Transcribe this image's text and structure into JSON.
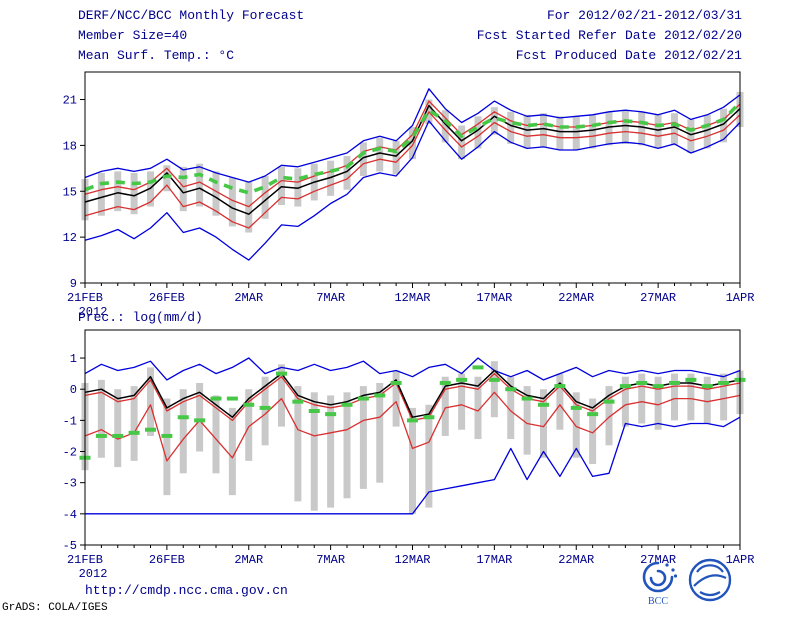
{
  "header": {
    "title": "DERF/NCC/BCC Monthly Forecast",
    "member_size": "Member Size=40",
    "var_label": "Mean Surf. Temp.: °C",
    "for_range": "For 2012/02/21-2012/03/31",
    "refer_date": "Fcst Started Refer Date 2012/02/20",
    "produced_date": "Fcst Produced Date 2012/02/21"
  },
  "footer": {
    "url": "http://cmdp.ncc.cma.gov.cn",
    "credit": "GrADS: COLA/IGES",
    "logo_label": "BCC"
  },
  "colors": {
    "text": "#00008b",
    "blue": "#0000dd",
    "red": "#d93030",
    "black": "#000000",
    "green": "#46c846",
    "bar": "#c9c9c9"
  },
  "chart_data": [
    {
      "type": "line",
      "title": "Mean Surf. Temp.: °C",
      "xlabel": "",
      "ylabel": "°C",
      "grid": false,
      "n_days": 41,
      "x_tick_labels": [
        "21FEB",
        "26FEB",
        "2MAR",
        "7MAR",
        "12MAR",
        "17MAR",
        "22MAR",
        "27MAR",
        "1APR"
      ],
      "x_year_label": "2012",
      "ylim": [
        9,
        22.8
      ],
      "yticks": [
        9,
        12,
        15,
        18,
        21
      ],
      "bars": {
        "color": "#c9c9c9",
        "low": [
          13.1,
          13.4,
          13.7,
          13.5,
          14.0,
          15.0,
          13.7,
          14.0,
          13.4,
          12.7,
          12.3,
          13.2,
          14.1,
          14.0,
          14.4,
          14.7,
          15.1,
          16.0,
          16.3,
          16.1,
          17.1,
          19.4,
          18.2,
          17.1,
          17.8,
          18.7,
          18.1,
          17.8,
          17.9,
          17.7,
          17.7,
          17.8,
          18.0,
          18.1,
          18.0,
          17.8,
          18.0,
          17.5,
          17.8,
          18.2,
          19.2
        ],
        "high": [
          15.8,
          16.2,
          16.3,
          16.2,
          16.3,
          16.7,
          16.6,
          16.8,
          16.3,
          15.9,
          15.6,
          16.0,
          16.6,
          16.5,
          16.8,
          17.0,
          17.3,
          18.2,
          18.5,
          18.3,
          19.2,
          21.0,
          20.3,
          19.3,
          19.9,
          20.5,
          20.2,
          20.0,
          20.1,
          19.9,
          19.9,
          20.0,
          20.2,
          20.3,
          20.2,
          20.0,
          20.1,
          19.7,
          20.0,
          20.4,
          21.5
        ]
      },
      "series": [
        {
          "name": "ensemble max",
          "color": "#0000dd",
          "width": 1.3,
          "values": [
            15.9,
            16.3,
            16.5,
            16.3,
            16.5,
            17.1,
            16.4,
            16.6,
            16.2,
            15.9,
            15.6,
            16.0,
            16.7,
            16.6,
            16.9,
            17.2,
            17.5,
            18.3,
            18.6,
            18.3,
            19.3,
            21.7,
            20.4,
            19.5,
            20.1,
            20.9,
            20.3,
            19.9,
            20.0,
            19.8,
            19.9,
            20.0,
            20.2,
            20.3,
            20.2,
            20.0,
            20.3,
            19.7,
            20.0,
            20.5,
            21.3
          ]
        },
        {
          "name": "upper quartile",
          "color": "#d93030",
          "width": 1.3,
          "values": [
            14.8,
            15.1,
            15.3,
            15.1,
            15.6,
            16.5,
            15.3,
            15.6,
            15.0,
            14.4,
            14.0,
            14.9,
            15.7,
            15.6,
            16.0,
            16.3,
            16.7,
            17.6,
            17.9,
            17.7,
            18.7,
            20.9,
            19.8,
            18.7,
            19.4,
            20.2,
            19.6,
            19.3,
            19.4,
            19.2,
            19.2,
            19.3,
            19.5,
            19.6,
            19.5,
            19.3,
            19.5,
            19.0,
            19.3,
            19.7,
            20.7
          ]
        },
        {
          "name": "lower quartile",
          "color": "#d93030",
          "width": 1.3,
          "values": [
            13.4,
            13.7,
            14.0,
            13.8,
            14.3,
            15.4,
            14.0,
            14.3,
            13.7,
            13.0,
            12.6,
            13.6,
            14.6,
            14.5,
            15.0,
            15.4,
            15.8,
            16.8,
            17.1,
            16.9,
            18.0,
            20.2,
            19.0,
            17.9,
            18.6,
            19.5,
            18.9,
            18.6,
            18.7,
            18.5,
            18.5,
            18.6,
            18.8,
            18.9,
            18.8,
            18.6,
            18.8,
            18.3,
            18.6,
            19.0,
            20.0
          ]
        },
        {
          "name": "ensemble min",
          "color": "#0000dd",
          "width": 1.3,
          "values": [
            11.8,
            12.1,
            12.5,
            11.9,
            12.6,
            13.6,
            12.3,
            12.6,
            12.0,
            11.2,
            10.5,
            11.6,
            12.8,
            12.7,
            13.4,
            14.2,
            14.8,
            15.9,
            16.2,
            16.0,
            17.2,
            19.6,
            18.3,
            17.1,
            17.9,
            18.9,
            18.2,
            17.8,
            17.9,
            17.7,
            17.7,
            17.9,
            18.1,
            18.2,
            18.1,
            17.8,
            18.1,
            17.5,
            17.9,
            18.4,
            19.5
          ]
        },
        {
          "name": "ensemble mean",
          "color": "#000000",
          "width": 1.5,
          "values": [
            14.3,
            14.6,
            14.9,
            14.7,
            15.2,
            16.2,
            14.9,
            15.2,
            14.6,
            13.9,
            13.5,
            14.4,
            15.3,
            15.2,
            15.6,
            15.9,
            16.3,
            17.2,
            17.5,
            17.3,
            18.3,
            20.6,
            19.4,
            18.3,
            19.0,
            19.9,
            19.3,
            19.0,
            19.1,
            18.9,
            18.9,
            19.0,
            19.2,
            19.3,
            19.2,
            19.0,
            19.2,
            18.7,
            19.0,
            19.4,
            20.4
          ]
        },
        {
          "name": "highlighted mean (green dashed)",
          "color": "#46c846",
          "dashed": true,
          "width": 3.6,
          "values": [
            15.1,
            15.5,
            15.6,
            15.5,
            15.6,
            16.0,
            15.9,
            16.1,
            15.6,
            15.2,
            14.9,
            15.3,
            15.9,
            15.8,
            16.1,
            16.3,
            16.6,
            17.5,
            17.8,
            17.6,
            18.5,
            20.3,
            19.6,
            18.6,
            19.2,
            19.8,
            19.5,
            19.3,
            19.4,
            19.2,
            19.2,
            19.3,
            19.5,
            19.6,
            19.5,
            19.3,
            19.4,
            19.0,
            19.3,
            19.7,
            20.8
          ]
        }
      ]
    },
    {
      "type": "line",
      "title": "Prec.: log(mm/d)",
      "xlabel": "",
      "ylabel": "log(mm/d)",
      "grid": false,
      "n_days": 41,
      "x_tick_labels": [
        "21FEB",
        "26FEB",
        "2MAR",
        "7MAR",
        "12MAR",
        "17MAR",
        "22MAR",
        "27MAR",
        "1APR"
      ],
      "x_year_label": "2012",
      "ylim": [
        -5,
        1.9
      ],
      "yticks": [
        1,
        0,
        -1,
        -2,
        -3,
        -4,
        -5
      ],
      "bars": {
        "color": "#c9c9c9",
        "low": [
          -2.6,
          -2.2,
          -2.5,
          -2.3,
          -1.5,
          -3.4,
          -2.7,
          -2.0,
          -2.7,
          -3.4,
          -2.3,
          -1.8,
          -1.2,
          -3.6,
          -3.9,
          -3.8,
          -3.5,
          -3.2,
          -3.0,
          -1.2,
          -4.0,
          -3.8,
          -1.5,
          -1.3,
          -1.6,
          -0.9,
          -1.6,
          -2.1,
          -2.2,
          -1.3,
          -2.2,
          -2.4,
          -1.8,
          -1.2,
          -1.1,
          -1.3,
          -1.0,
          -1.0,
          -1.1,
          -1.0,
          -0.8
        ],
        "high": [
          0.2,
          0.3,
          0.0,
          0.1,
          0.7,
          -0.3,
          0.0,
          0.2,
          -0.2,
          -0.6,
          0.0,
          0.4,
          0.8,
          0.1,
          -0.1,
          -0.2,
          -0.1,
          0.1,
          0.2,
          0.6,
          -0.6,
          -0.5,
          0.4,
          0.5,
          0.4,
          0.9,
          0.4,
          0.1,
          0.0,
          0.5,
          -0.1,
          -0.3,
          0.1,
          0.4,
          0.5,
          0.4,
          0.5,
          0.5,
          0.4,
          0.5,
          0.6
        ]
      },
      "series": [
        {
          "name": "ensemble max",
          "color": "#0000dd",
          "width": 1.3,
          "values": [
            0.5,
            0.8,
            0.6,
            0.7,
            0.9,
            0.3,
            0.6,
            0.8,
            0.5,
            0.7,
            1.0,
            0.5,
            0.7,
            0.6,
            0.8,
            0.6,
            0.7,
            0.9,
            0.5,
            0.6,
            0.4,
            0.7,
            0.8,
            0.5,
            1.0,
            0.6,
            0.4,
            0.6,
            0.3,
            0.5,
            0.7,
            0.4,
            0.6,
            0.5,
            0.6,
            0.5,
            0.6,
            0.6,
            0.5,
            0.4,
            0.6
          ]
        },
        {
          "name": "lower quartile",
          "color": "#d93030",
          "width": 1.3,
          "values": [
            -1.5,
            -1.3,
            -1.6,
            -1.4,
            -0.5,
            -2.3,
            -1.6,
            -1.0,
            -1.6,
            -2.2,
            -1.2,
            -0.8,
            -0.3,
            -1.3,
            -1.5,
            -1.4,
            -1.3,
            -1.0,
            -0.9,
            -0.4,
            -1.9,
            -1.7,
            -0.6,
            -0.5,
            -0.7,
            -0.1,
            -0.7,
            -1.1,
            -1.2,
            -0.5,
            -1.2,
            -1.4,
            -0.9,
            -0.5,
            -0.4,
            -0.5,
            -0.3,
            -0.3,
            -0.4,
            -0.3,
            -0.2
          ]
        },
        {
          "name": "ensemble min",
          "color": "#0000dd",
          "width": 1.3,
          "values": [
            -4.0,
            -4.0,
            -4.0,
            -4.0,
            -4.0,
            -4.0,
            -4.0,
            -4.0,
            -4.0,
            -4.0,
            -4.0,
            -4.0,
            -4.0,
            -4.0,
            -4.0,
            -4.0,
            -4.0,
            -4.0,
            -4.0,
            -4.0,
            -4.0,
            -3.3,
            -3.2,
            -3.1,
            -3.0,
            -2.9,
            -1.9,
            -2.9,
            -2.0,
            -2.8,
            -1.9,
            -2.8,
            -2.7,
            -1.1,
            -1.2,
            -1.1,
            -1.2,
            -1.1,
            -1.1,
            -1.2,
            -0.9
          ]
        },
        {
          "name": "upper quartile (near mean)",
          "color": "#d93030",
          "width": 1.3,
          "values": [
            -0.2,
            -0.1,
            -0.4,
            -0.3,
            0.3,
            -0.7,
            -0.4,
            -0.2,
            -0.6,
            -1.0,
            -0.4,
            0.0,
            0.4,
            -0.3,
            -0.5,
            -0.6,
            -0.5,
            -0.3,
            -0.2,
            0.2,
            -1.0,
            -0.9,
            0.0,
            0.1,
            0.0,
            0.5,
            0.0,
            -0.3,
            -0.4,
            0.1,
            -0.5,
            -0.7,
            -0.3,
            0.0,
            0.1,
            0.0,
            0.1,
            0.1,
            0.0,
            0.1,
            0.2
          ]
        },
        {
          "name": "ensemble mean",
          "color": "#000000",
          "width": 1.5,
          "values": [
            -0.1,
            0.0,
            -0.3,
            -0.2,
            0.4,
            -0.6,
            -0.3,
            -0.1,
            -0.5,
            -0.9,
            -0.3,
            0.1,
            0.5,
            -0.2,
            -0.4,
            -0.5,
            -0.4,
            -0.2,
            -0.1,
            0.3,
            -0.9,
            -0.8,
            0.1,
            0.2,
            0.1,
            0.6,
            0.1,
            -0.2,
            -0.3,
            0.2,
            -0.4,
            -0.6,
            -0.2,
            0.1,
            0.2,
            0.1,
            0.2,
            0.2,
            0.1,
            0.2,
            0.3
          ]
        },
        {
          "name": "highlighted mean (green marks)",
          "color": "#46c846",
          "marker": "hdash",
          "width": 4,
          "values": [
            -2.2,
            -1.5,
            -1.5,
            -1.4,
            -1.3,
            -1.5,
            -0.9,
            -1.0,
            -0.3,
            -0.3,
            -0.5,
            -0.6,
            0.5,
            -0.4,
            -0.7,
            -0.8,
            -0.5,
            -0.3,
            -0.2,
            0.2,
            -1.0,
            -0.9,
            0.2,
            0.3,
            0.7,
            0.3,
            0.0,
            -0.3,
            -0.5,
            0.1,
            -0.6,
            -0.8,
            -0.4,
            0.1,
            0.2,
            0.1,
            0.2,
            0.3,
            0.1,
            0.2,
            0.3
          ]
        }
      ]
    }
  ]
}
